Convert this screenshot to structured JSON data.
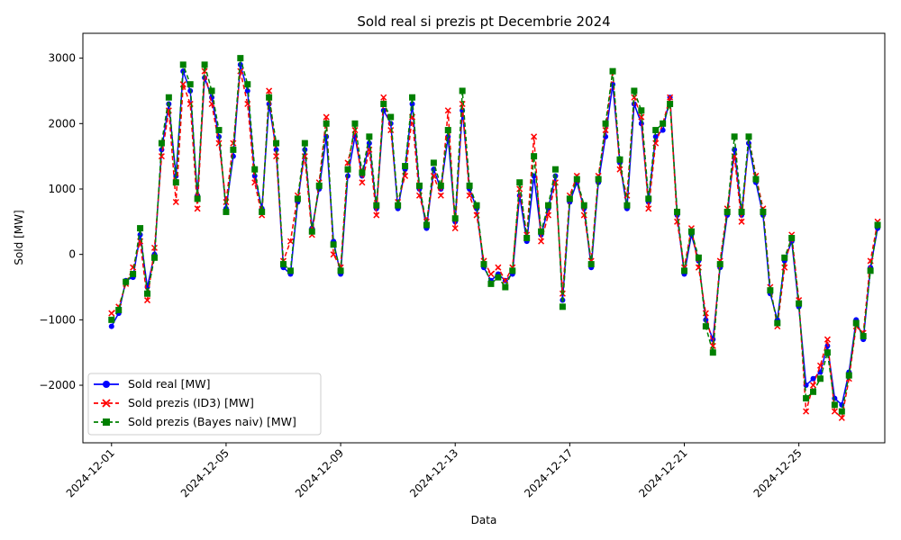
{
  "chart_data": {
    "type": "line",
    "title": "Sold real si prezis pt Decembrie 2024",
    "xlabel": "Data",
    "ylabel": "Sold [MW]",
    "x_range": [
      "2024-11-30T00:00",
      "2024-12-28T00:00"
    ],
    "ylim": [
      -2880,
      3380
    ],
    "y_ticks": [
      -2000,
      -1000,
      0,
      1000,
      2000,
      3000
    ],
    "y_tick_labels": [
      "−2000",
      "−1000",
      "0",
      "1000",
      "2000",
      "3000"
    ],
    "x_ticks": [
      "2024-12-01",
      "2024-12-05",
      "2024-12-09",
      "2024-12-13",
      "2024-12-17",
      "2024-12-21",
      "2024-12-25"
    ],
    "grid": false,
    "legend_position": "lower-left",
    "x": [
      "2024-12-01T00:00",
      "2024-12-01T06:00",
      "2024-12-01T12:00",
      "2024-12-01T18:00",
      "2024-12-02T00:00",
      "2024-12-02T06:00",
      "2024-12-02T12:00",
      "2024-12-02T18:00",
      "2024-12-03T00:00",
      "2024-12-03T06:00",
      "2024-12-03T12:00",
      "2024-12-03T18:00",
      "2024-12-04T00:00",
      "2024-12-04T06:00",
      "2024-12-04T12:00",
      "2024-12-04T18:00",
      "2024-12-05T00:00",
      "2024-12-05T06:00",
      "2024-12-05T12:00",
      "2024-12-05T18:00",
      "2024-12-06T00:00",
      "2024-12-06T06:00",
      "2024-12-06T12:00",
      "2024-12-06T18:00",
      "2024-12-07T00:00",
      "2024-12-07T06:00",
      "2024-12-07T12:00",
      "2024-12-07T18:00",
      "2024-12-08T00:00",
      "2024-12-08T06:00",
      "2024-12-08T12:00",
      "2024-12-08T18:00",
      "2024-12-09T00:00",
      "2024-12-09T06:00",
      "2024-12-09T12:00",
      "2024-12-09T18:00",
      "2024-12-10T00:00",
      "2024-12-10T06:00",
      "2024-12-10T12:00",
      "2024-12-10T18:00",
      "2024-12-11T00:00",
      "2024-12-11T06:00",
      "2024-12-11T12:00",
      "2024-12-11T18:00",
      "2024-12-12T00:00",
      "2024-12-12T06:00",
      "2024-12-12T12:00",
      "2024-12-12T18:00",
      "2024-12-13T00:00",
      "2024-12-13T06:00",
      "2024-12-13T12:00",
      "2024-12-13T18:00",
      "2024-12-14T00:00",
      "2024-12-14T06:00",
      "2024-12-14T12:00",
      "2024-12-14T18:00",
      "2024-12-15T00:00",
      "2024-12-15T06:00",
      "2024-12-15T12:00",
      "2024-12-15T18:00",
      "2024-12-16T00:00",
      "2024-12-16T06:00",
      "2024-12-16T12:00",
      "2024-12-16T18:00",
      "2024-12-17T00:00",
      "2024-12-17T06:00",
      "2024-12-17T12:00",
      "2024-12-17T18:00",
      "2024-12-18T00:00",
      "2024-12-18T06:00",
      "2024-12-18T12:00",
      "2024-12-18T18:00",
      "2024-12-19T00:00",
      "2024-12-19T06:00",
      "2024-12-19T12:00",
      "2024-12-19T18:00",
      "2024-12-20T00:00",
      "2024-12-20T06:00",
      "2024-12-20T12:00",
      "2024-12-20T18:00",
      "2024-12-21T00:00",
      "2024-12-21T06:00",
      "2024-12-21T12:00",
      "2024-12-21T18:00",
      "2024-12-22T00:00",
      "2024-12-22T06:00",
      "2024-12-22T12:00",
      "2024-12-22T18:00",
      "2024-12-23T00:00",
      "2024-12-23T06:00",
      "2024-12-23T12:00",
      "2024-12-23T18:00",
      "2024-12-24T00:00",
      "2024-12-24T06:00",
      "2024-12-24T12:00",
      "2024-12-24T18:00",
      "2024-12-25T00:00",
      "2024-12-25T06:00",
      "2024-12-25T12:00",
      "2024-12-25T18:00",
      "2024-12-26T00:00",
      "2024-12-26T06:00",
      "2024-12-26T12:00",
      "2024-12-26T18:00",
      "2024-12-27T00:00",
      "2024-12-27T06:00",
      "2024-12-27T12:00",
      "2024-12-27T18:00"
    ],
    "series": [
      {
        "name": "Sold real [MW]",
        "color": "#0000ff",
        "line_style": "solid",
        "marker": "circle",
        "values": [
          -1100,
          -900,
          -400,
          -350,
          300,
          -500,
          0,
          1600,
          2300,
          1200,
          2800,
          2500,
          900,
          2700,
          2400,
          1800,
          700,
          1500,
          2900,
          2500,
          1200,
          700,
          2300,
          1600,
          -200,
          -300,
          800,
          1600,
          400,
          1000,
          1800,
          200,
          -300,
          1200,
          1800,
          1200,
          1700,
          700,
          2200,
          2000,
          700,
          1300,
          2300,
          1000,
          400,
          1300,
          1000,
          1800,
          500,
          2200,
          1000,
          700,
          -200,
          -400,
          -300,
          -400,
          -300,
          900,
          200,
          1200,
          300,
          700,
          1200,
          -700,
          800,
          1100,
          700,
          -200,
          1100,
          1800,
          2600,
          1400,
          700,
          2300,
          2000,
          800,
          1800,
          1900,
          2400,
          600,
          -300,
          300,
          -100,
          -1000,
          -1300,
          -200,
          600,
          1600,
          600,
          1700,
          1100,
          600,
          -600,
          -1000,
          -100,
          200,
          -800,
          -2000,
          -1900,
          -1800,
          -1400,
          -2200,
          -2300,
          -1800,
          -1000,
          -1300,
          -200,
          400
        ]
      },
      {
        "name": "Sold prezis (ID3) [MW]",
        "color": "#ff0000",
        "line_style": "dashed",
        "marker": "x",
        "values": [
          -900,
          -800,
          -450,
          -200,
          200,
          -700,
          100,
          1500,
          2200,
          800,
          2600,
          2300,
          700,
          2800,
          2300,
          1700,
          800,
          1700,
          2800,
          2300,
          1100,
          600,
          2500,
          1500,
          -100,
          200,
          900,
          1500,
          300,
          1100,
          2100,
          0,
          -200,
          1400,
          1900,
          1100,
          1600,
          600,
          2400,
          1900,
          800,
          1200,
          2100,
          900,
          500,
          1200,
          900,
          2200,
          400,
          2300,
          900,
          600,
          -100,
          -300,
          -200,
          -400,
          -200,
          1000,
          300,
          1800,
          200,
          600,
          1100,
          -600,
          900,
          1200,
          600,
          -100,
          1200,
          1900,
          2800,
          1300,
          900,
          2400,
          2100,
          700,
          1700,
          2000,
          2400,
          500,
          -200,
          400,
          -200,
          -900,
          -1400,
          -100,
          700,
          1500,
          500,
          1800,
          1200,
          700,
          -500,
          -1100,
          -200,
          300,
          -700,
          -2400,
          -2000,
          -1700,
          -1300,
          -2400,
          -2500,
          -1900,
          -1100,
          -1200,
          -100,
          500
        ]
      },
      {
        "name": "Sold prezis (Bayes naiv) [MW]",
        "color": "#008000",
        "line_style": "dashed",
        "marker": "square",
        "values": [
          -1000,
          -850,
          -420,
          -300,
          400,
          -600,
          -50,
          1700,
          2400,
          1100,
          2900,
          2600,
          850,
          2900,
          2500,
          1900,
          650,
          1600,
          3000,
          2600,
          1300,
          650,
          2400,
          1700,
          -150,
          -250,
          850,
          1700,
          350,
          1050,
          2000,
          150,
          -250,
          1300,
          2000,
          1250,
          1800,
          750,
          2300,
          2100,
          750,
          1350,
          2400,
          1050,
          450,
          1400,
          1050,
          1900,
          550,
          2500,
          1050,
          750,
          -150,
          -450,
          -350,
          -500,
          -250,
          1100,
          250,
          1500,
          350,
          750,
          1300,
          -800,
          850,
          1150,
          750,
          -150,
          1150,
          2000,
          2800,
          1450,
          750,
          2500,
          2200,
          850,
          1900,
          2000,
          2300,
          650,
          -250,
          350,
          -50,
          -1100,
          -1500,
          -150,
          650,
          1800,
          650,
          1800,
          1150,
          650,
          -550,
          -1050,
          -50,
          250,
          -750,
          -2200,
          -2100,
          -1900,
          -1500,
          -2300,
          -2400,
          -1850,
          -1050,
          -1250,
          -250,
          450
        ]
      }
    ]
  }
}
